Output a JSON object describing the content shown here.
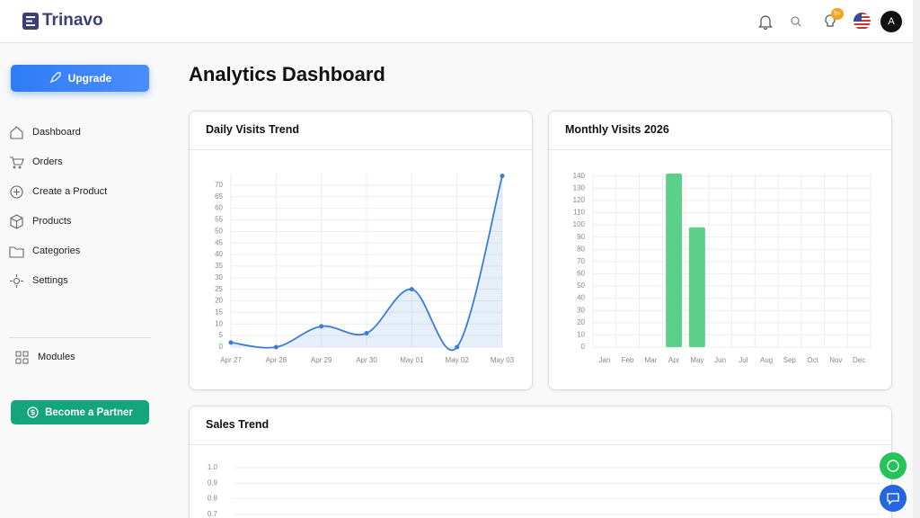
{
  "header": {
    "brand": "Trinavo",
    "badge": "9+",
    "avatar": "A"
  },
  "sidebar": {
    "upgrade": "Upgrade",
    "nav": [
      "Dashboard",
      "Orders",
      "Create a Product",
      "Products",
      "Categories",
      "Settings"
    ],
    "modules": "Modules",
    "partner": "Become a Partner"
  },
  "main": {
    "title": "Analytics Dashboard"
  },
  "chart_data": [
    {
      "type": "line",
      "title": "Daily Visits Trend",
      "categories": [
        "Apr 27",
        "Apr 28",
        "Apr 29",
        "Apr 30",
        "May 01",
        "May 02",
        "May 03"
      ],
      "values": [
        2,
        0,
        9,
        6,
        25,
        0,
        74
      ],
      "color": "#3b7dd8",
      "ylim": [
        0,
        75
      ],
      "yticks": [
        0,
        5,
        10,
        15,
        20,
        25,
        30,
        35,
        40,
        45,
        50,
        55,
        60,
        65,
        70
      ],
      "grid": true
    },
    {
      "type": "bar",
      "title": "Monthly Visits 2026",
      "categories": [
        "Jan",
        "Feb",
        "Mar",
        "Apr",
        "May",
        "Jun",
        "Jul",
        "Aug",
        "Sep",
        "Oct",
        "Nov",
        "Dec"
      ],
      "values": [
        0,
        0,
        0,
        142,
        98,
        0,
        0,
        0,
        0,
        0,
        0,
        0
      ],
      "color": "#5cd08a",
      "ylim": [
        0,
        142
      ],
      "yticks": [
        0,
        10,
        20,
        30,
        40,
        50,
        60,
        70,
        80,
        90,
        100,
        110,
        120,
        130,
        140
      ],
      "grid": true
    },
    {
      "type": "line",
      "title": "Sales Trend",
      "ylim": [
        0,
        1
      ],
      "yticks": [
        {
          "value": 1,
          "label": "1.0"
        },
        {
          "value": 0.9,
          "label": "0.9"
        },
        {
          "value": 0.8,
          "label": "0.8"
        },
        {
          "value": 0.7,
          "label": "0.7"
        }
      ],
      "grid": true
    }
  ]
}
